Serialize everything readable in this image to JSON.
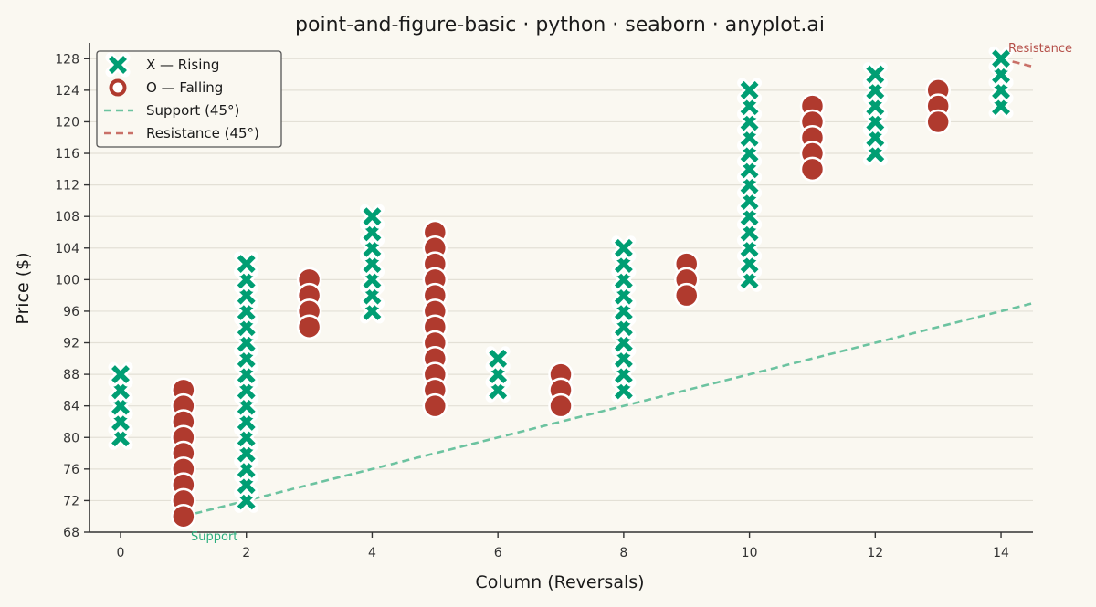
{
  "chart_data": {
    "type": "scatter",
    "title": "point-and-figure-basic · python · seaborn · anyplot.ai",
    "xlabel": "Column (Reversals)",
    "ylabel": "Price ($)",
    "xlim": [
      -0.5,
      14.5
    ],
    "ylim": [
      68,
      130
    ],
    "xticks": [
      0,
      2,
      4,
      6,
      8,
      10,
      12,
      14
    ],
    "yticks": [
      68,
      72,
      76,
      80,
      84,
      88,
      92,
      96,
      100,
      104,
      108,
      112,
      116,
      120,
      124,
      128
    ],
    "grid": "horizontal",
    "legend_placement": "top-left",
    "box_size": 2,
    "columns": [
      {
        "x": 0,
        "type": "X",
        "low": 80,
        "high": 88
      },
      {
        "x": 1,
        "type": "O",
        "low": 70,
        "high": 86
      },
      {
        "x": 2,
        "type": "X",
        "low": 72,
        "high": 102
      },
      {
        "x": 3,
        "type": "O",
        "low": 94,
        "high": 100
      },
      {
        "x": 4,
        "type": "X",
        "low": 96,
        "high": 108
      },
      {
        "x": 5,
        "type": "O",
        "low": 84,
        "high": 106
      },
      {
        "x": 6,
        "type": "X",
        "low": 86,
        "high": 90
      },
      {
        "x": 7,
        "type": "O",
        "low": 84,
        "high": 88
      },
      {
        "x": 8,
        "type": "X",
        "low": 86,
        "high": 104
      },
      {
        "x": 9,
        "type": "O",
        "low": 98,
        "high": 102
      },
      {
        "x": 10,
        "type": "X",
        "low": 100,
        "high": 124
      },
      {
        "x": 11,
        "type": "O",
        "low": 114,
        "high": 122
      },
      {
        "x": 12,
        "type": "X",
        "low": 116,
        "high": 126
      },
      {
        "x": 13,
        "type": "O",
        "low": 120,
        "high": 124
      },
      {
        "x": 14,
        "type": "X",
        "low": 122,
        "high": 128
      }
    ],
    "series": [
      {
        "name": "X — Rising",
        "marker": "x",
        "color": "#009E73"
      },
      {
        "name": "O — Falling",
        "marker": "o",
        "color": "#B03A2E"
      },
      {
        "name": "Support (45°)",
        "line": "dashed",
        "color": "#6CC3A0",
        "points": [
          [
            1,
            70
          ],
          [
            14.5,
            97
          ]
        ]
      },
      {
        "name": "Resistance (45°)",
        "line": "dashed",
        "color": "#C97068",
        "points": [
          [
            14,
            128
          ],
          [
            14.5,
            127
          ]
        ]
      }
    ],
    "annotations": [
      {
        "text": "Support",
        "color": "#2BAE7E"
      },
      {
        "text": "Resistance",
        "color": "#B5504A"
      }
    ]
  }
}
